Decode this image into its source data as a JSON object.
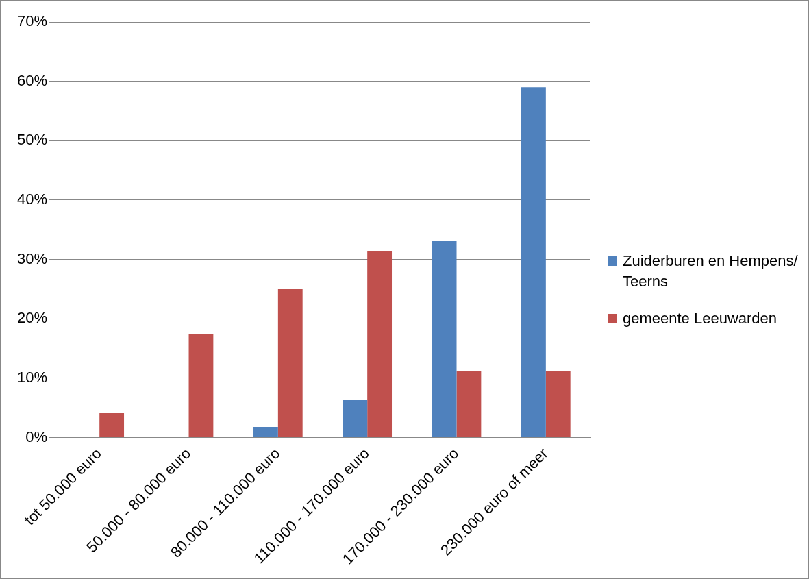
{
  "chart_data": {
    "type": "bar",
    "categories": [
      "tot 50.000 euro",
      "50.000 - 80.000 euro",
      "80.000 - 110.000 euro",
      "110.000 - 170.000 euro",
      "170.000 - 230.000 euro",
      "230.000 euro of meer"
    ],
    "series": [
      {
        "name": "Zuiderburen en Hempens/ Teerns",
        "color": "#4f81bd",
        "values": [
          0,
          0,
          1.8,
          6.3,
          33.2,
          59
        ]
      },
      {
        "name": "gemeente Leeuwarden",
        "color": "#c0504d",
        "values": [
          4.1,
          17.4,
          25,
          31.4,
          11.2,
          11.2
        ]
      }
    ],
    "ylim": [
      0,
      70
    ],
    "yticks": [
      {
        "value": 0,
        "label": "0%"
      },
      {
        "value": 10,
        "label": "10%"
      },
      {
        "value": 20,
        "label": "20%"
      },
      {
        "value": 30,
        "label": "30%"
      },
      {
        "value": 40,
        "label": "40%"
      },
      {
        "value": 50,
        "label": "50%"
      },
      {
        "value": 60,
        "label": "60%"
      },
      {
        "value": 70,
        "label": "70%"
      }
    ],
    "grid": "y",
    "legend": "right"
  }
}
